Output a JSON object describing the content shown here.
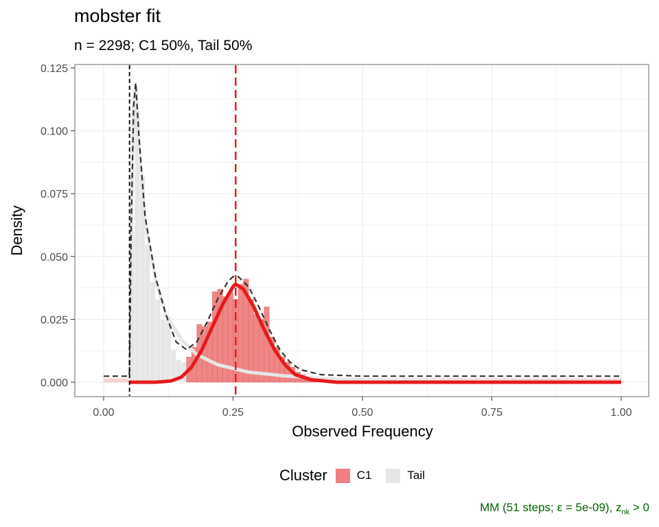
{
  "chart_data": {
    "type": "histogram",
    "title": "mobster fit",
    "subtitle": "n = 2298; C1 50%, Tail 50%",
    "xlabel": "Observed Frequency",
    "ylabel": "Density",
    "xlim": [
      0,
      1
    ],
    "ylim": [
      0,
      0.125
    ],
    "x_ticks": [
      "0.00",
      "0.25",
      "0.50",
      "0.75",
      "1.00"
    ],
    "y_ticks": [
      "0.000",
      "0.025",
      "0.050",
      "0.075",
      "0.100",
      "0.125"
    ],
    "grid": true,
    "legend": {
      "title": "Cluster",
      "position": "bottom",
      "entries": [
        {
          "label": "C1",
          "color": "#F08080"
        },
        {
          "label": "Tail",
          "color": "#E6E6E6"
        }
      ]
    },
    "colors": {
      "c1_bar": "#F08080",
      "c1_line": "#E41A1C",
      "tail_fill": "#E6E6E6",
      "mixture_line": "#333333"
    },
    "histogram": {
      "bin_width": 0.01,
      "bins": [
        {
          "x": 0.055,
          "tail": 0.06,
          "c1": 0
        },
        {
          "x": 0.065,
          "tail": 0.108,
          "c1": 0
        },
        {
          "x": 0.075,
          "tail": 0.082,
          "c1": 0
        },
        {
          "x": 0.085,
          "tail": 0.055,
          "c1": 0
        },
        {
          "x": 0.095,
          "tail": 0.04,
          "c1": 0
        },
        {
          "x": 0.105,
          "tail": 0.033,
          "c1": 0
        },
        {
          "x": 0.115,
          "tail": 0.025,
          "c1": 0
        },
        {
          "x": 0.125,
          "tail": 0.026,
          "c1": 0
        },
        {
          "x": 0.135,
          "tail": 0.013,
          "c1": 0
        },
        {
          "x": 0.145,
          "tail": 0.009,
          "c1": 0
        },
        {
          "x": 0.155,
          "tail": 0.008,
          "c1": 0
        },
        {
          "x": 0.165,
          "tail": 0.004,
          "c1": 0.01
        },
        {
          "x": 0.175,
          "tail": 0.003,
          "c1": 0.014
        },
        {
          "x": 0.185,
          "tail": 0.002,
          "c1": 0.023
        },
        {
          "x": 0.195,
          "tail": 0,
          "c1": 0.022
        },
        {
          "x": 0.205,
          "tail": 0,
          "c1": 0.024
        },
        {
          "x": 0.215,
          "tail": 0,
          "c1": 0.036
        },
        {
          "x": 0.225,
          "tail": 0,
          "c1": 0.037
        },
        {
          "x": 0.235,
          "tail": 0,
          "c1": 0.034
        },
        {
          "x": 0.245,
          "tail": 0,
          "c1": 0.036
        },
        {
          "x": 0.255,
          "tail": 0,
          "c1": 0.033
        },
        {
          "x": 0.265,
          "tail": 0,
          "c1": 0.039
        },
        {
          "x": 0.275,
          "tail": 0,
          "c1": 0.041
        },
        {
          "x": 0.285,
          "tail": 0,
          "c1": 0.033
        },
        {
          "x": 0.295,
          "tail": 0,
          "c1": 0.027
        },
        {
          "x": 0.305,
          "tail": 0,
          "c1": 0.025
        },
        {
          "x": 0.315,
          "tail": 0,
          "c1": 0.03
        },
        {
          "x": 0.325,
          "tail": 0,
          "c1": 0.018
        },
        {
          "x": 0.335,
          "tail": 0,
          "c1": 0.014
        },
        {
          "x": 0.345,
          "tail": 0,
          "c1": 0.01
        },
        {
          "x": 0.355,
          "tail": 0,
          "c1": 0.008
        },
        {
          "x": 0.365,
          "tail": 0,
          "c1": 0.006
        },
        {
          "x": 0.375,
          "tail": 0,
          "c1": 0.004
        },
        {
          "x": 0.385,
          "tail": 0,
          "c1": 0.003
        },
        {
          "x": 0.395,
          "tail": 0,
          "c1": 0.002
        },
        {
          "x": 0.405,
          "tail": 0,
          "c1": 0.001
        }
      ]
    },
    "curves": {
      "c1_density": [
        [
          0.05,
          0
        ],
        [
          0.1,
          0
        ],
        [
          0.13,
          0.0005
        ],
        [
          0.15,
          0.002
        ],
        [
          0.17,
          0.006
        ],
        [
          0.19,
          0.013
        ],
        [
          0.21,
          0.022
        ],
        [
          0.23,
          0.031
        ],
        [
          0.25,
          0.038
        ],
        [
          0.255,
          0.039
        ],
        [
          0.27,
          0.037
        ],
        [
          0.29,
          0.03
        ],
        [
          0.31,
          0.021
        ],
        [
          0.33,
          0.013
        ],
        [
          0.35,
          0.007
        ],
        [
          0.37,
          0.003
        ],
        [
          0.4,
          0.001
        ],
        [
          0.45,
          0
        ],
        [
          1.0,
          0
        ]
      ],
      "tail_density": [
        [
          0.05,
          0.004
        ],
        [
          0.053,
          0.06
        ],
        [
          0.058,
          0.11
        ],
        [
          0.062,
          0.118
        ],
        [
          0.068,
          0.095
        ],
        [
          0.08,
          0.064
        ],
        [
          0.1,
          0.041
        ],
        [
          0.12,
          0.027
        ],
        [
          0.15,
          0.017
        ],
        [
          0.18,
          0.011
        ],
        [
          0.22,
          0.007
        ],
        [
          0.28,
          0.004
        ],
        [
          0.35,
          0.0025
        ],
        [
          0.45,
          0.0012
        ],
        [
          0.6,
          0.0006
        ],
        [
          0.8,
          0.0003
        ],
        [
          1.0,
          0.0002
        ]
      ],
      "mixture_density": [
        [
          0.0,
          0.0024
        ],
        [
          0.048,
          0.0024
        ],
        [
          0.05,
          0.004
        ],
        [
          0.053,
          0.06
        ],
        [
          0.058,
          0.11
        ],
        [
          0.062,
          0.119
        ],
        [
          0.068,
          0.098
        ],
        [
          0.08,
          0.066
        ],
        [
          0.1,
          0.042
        ],
        [
          0.12,
          0.027
        ],
        [
          0.14,
          0.016
        ],
        [
          0.16,
          0.013
        ],
        [
          0.18,
          0.016
        ],
        [
          0.2,
          0.024
        ],
        [
          0.22,
          0.033
        ],
        [
          0.24,
          0.04
        ],
        [
          0.25,
          0.042
        ],
        [
          0.26,
          0.042
        ],
        [
          0.28,
          0.038
        ],
        [
          0.3,
          0.03
        ],
        [
          0.32,
          0.021
        ],
        [
          0.34,
          0.013
        ],
        [
          0.36,
          0.008
        ],
        [
          0.38,
          0.005
        ],
        [
          0.42,
          0.003
        ],
        [
          0.5,
          0.0024
        ],
        [
          1.0,
          0.0024
        ]
      ],
      "tail_cutoff": 0.05,
      "c1_mean": 0.255
    },
    "caption": {
      "text": "MM (51 steps; ε = 5e-09), z",
      "subscript": "nk",
      "suffix": " > 0",
      "color": "#006400"
    }
  }
}
